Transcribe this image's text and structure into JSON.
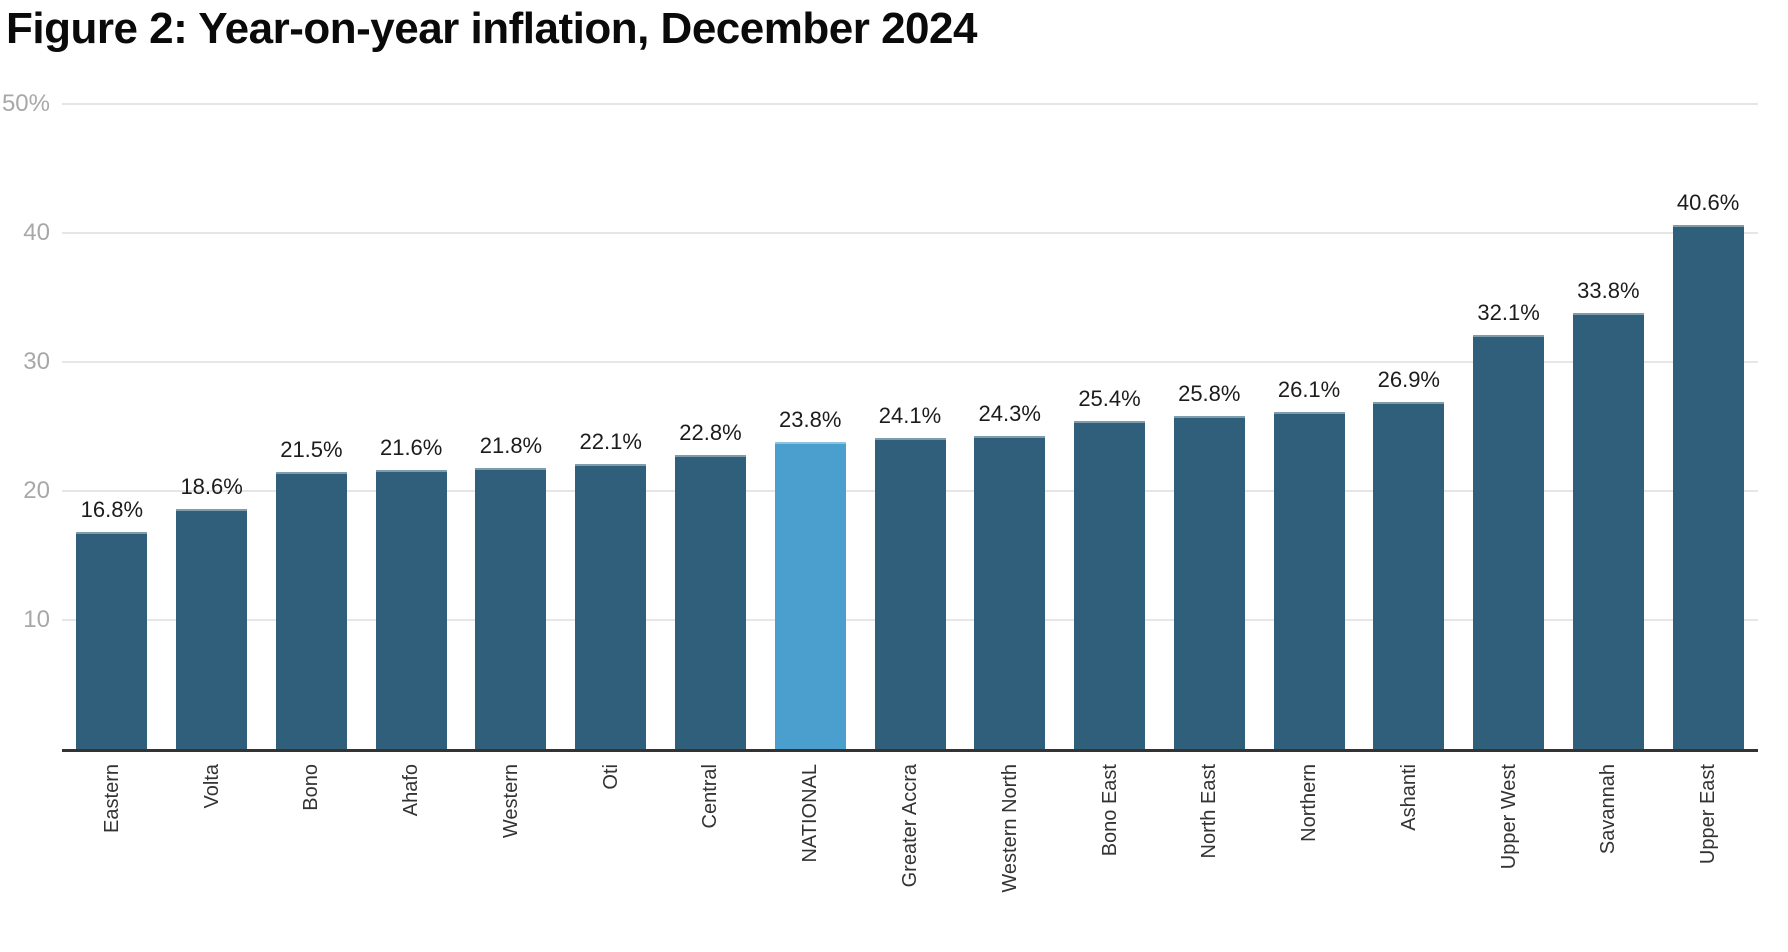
{
  "figure": {
    "title": "Figure 2: Year-on-year inflation, December 2024"
  },
  "chart_data": {
    "type": "bar",
    "title": "Figure 2: Year-on-year inflation, December 2024",
    "categories": [
      "Eastern",
      "Volta",
      "Bono",
      "Ahafo",
      "Western",
      "Oti",
      "Central",
      "NATIONAL",
      "Greater Accra",
      "Western North",
      "Bono East",
      "North East",
      "Northern",
      "Ashanti",
      "Upper West",
      "Savannah",
      "Upper East"
    ],
    "values": [
      16.8,
      18.6,
      21.5,
      21.6,
      21.8,
      22.1,
      22.8,
      23.8,
      24.1,
      24.3,
      25.4,
      25.8,
      26.1,
      26.9,
      32.1,
      33.8,
      40.6
    ],
    "value_labels": [
      "16.8%",
      "18.6%",
      "21.5%",
      "21.6%",
      "21.8%",
      "22.1%",
      "22.8%",
      "23.8%",
      "24.1%",
      "24.3%",
      "25.4%",
      "25.8%",
      "26.1%",
      "26.9%",
      "32.1%",
      "33.8%",
      "40.6%"
    ],
    "highlight_category": "NATIONAL",
    "xlabel": "",
    "ylabel": "",
    "ylim": [
      0,
      50
    ],
    "yticks": [
      {
        "value": 10,
        "label": "10"
      },
      {
        "value": 20,
        "label": "20"
      },
      {
        "value": 30,
        "label": "30"
      },
      {
        "value": 40,
        "label": "40"
      },
      {
        "value": 50,
        "label": "50%"
      }
    ],
    "grid": "horizontal",
    "legend": "none",
    "colors": {
      "bar": "#2f5f7a",
      "highlight_bar": "#4a9fce",
      "value_label": "#1c1c1c",
      "category_label": "#333333",
      "tick_label": "#a8a8a8",
      "gridline": "#e6e6e6",
      "axis_line": "#333333",
      "title": "#0a0a0a"
    }
  }
}
